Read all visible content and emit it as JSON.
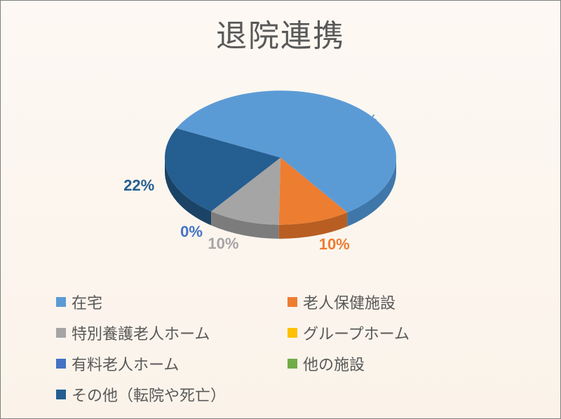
{
  "chart": {
    "type": "pie",
    "title": "退院連携",
    "title_fontsize": 44,
    "title_color": "#595959",
    "background_gradient": [
      "#fdf8f3",
      "#fbf3ea"
    ],
    "border_color": "#7f7f7f",
    "label_fontsize": 22,
    "legend_fontsize": 22,
    "legend_text_color": "#595959",
    "pie_3d_depth": 20,
    "pie_tilt": 0.58,
    "start_angle_deg": -64,
    "slices": [
      {
        "name": "在宅",
        "value": 58,
        "color": "#5b9bd5",
        "side": "#3f77aa",
        "label": "58%",
        "label_color": "#5b9bd5"
      },
      {
        "name": "老人保健施設",
        "value": 10,
        "color": "#ed7d31",
        "side": "#b85e22",
        "label": "10%",
        "label_color": "#ed7d31"
      },
      {
        "name": "特別養護老人ホーム",
        "value": 10,
        "color": "#a5a5a5",
        "side": "#7c7c7c",
        "label": "10%",
        "label_color": "#a5a5a5"
      },
      {
        "name": "グループホーム",
        "value": 0,
        "color": "#ffc000",
        "side": "#bf9000",
        "label": "",
        "label_color": "#ffc000"
      },
      {
        "name": "有料老人ホーム",
        "value": 0,
        "color": "#4472c4",
        "side": "#2f528f",
        "label": "0%",
        "label_color": "#4472c4"
      },
      {
        "name": "他の施設",
        "value": 0,
        "color": "#70ad47",
        "side": "#507e33",
        "label": "",
        "label_color": "#70ad47"
      },
      {
        "name": "その他（転院や死亡）",
        "value": 22,
        "color": "#255e91",
        "side": "#1a4366",
        "label": "22%",
        "label_color": "#255e91"
      }
    ],
    "legend_columns": 2
  }
}
